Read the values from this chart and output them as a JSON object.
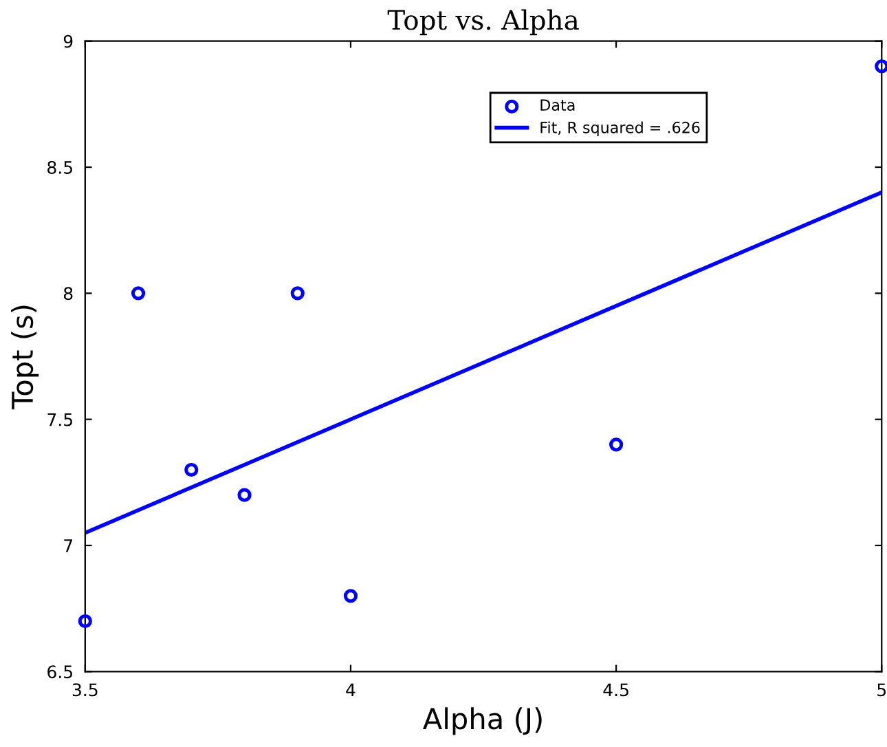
{
  "chart_data": {
    "type": "scatter",
    "title": "Topt vs. Alpha",
    "xlabel": "Alpha (J)",
    "ylabel": "Topt (s)",
    "xlim": [
      3.5,
      5
    ],
    "ylim": [
      6.5,
      9
    ],
    "xticks": [
      3.5,
      4,
      4.5,
      5
    ],
    "yticks": [
      6.5,
      7,
      7.5,
      8,
      8.5,
      9
    ],
    "grid": false,
    "legend": "top right",
    "series": [
      {
        "name": "Data",
        "marker": "circle",
        "color": "#0000ff",
        "x": [
          3.5,
          3.6,
          3.7,
          3.8,
          3.9,
          4.0,
          4.5,
          5.0
        ],
        "values": [
          6.7,
          8.0,
          7.3,
          7.2,
          8.0,
          6.8,
          7.4,
          8.9
        ]
      },
      {
        "name": "Fit, R squared = .626",
        "type": "line",
        "color": "#0000ff",
        "line_style": "solid",
        "x": [
          3.5,
          5.0
        ],
        "values": [
          7.05,
          8.4
        ]
      }
    ]
  }
}
